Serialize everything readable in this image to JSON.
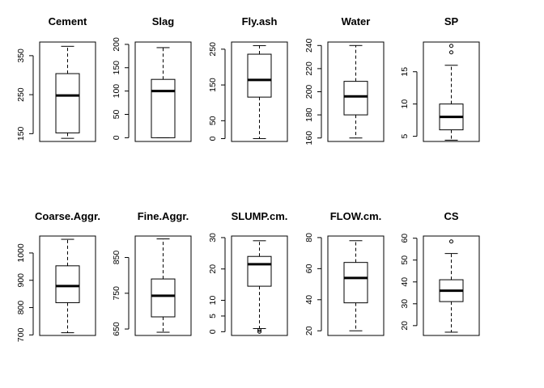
{
  "chart_data": [
    {
      "type": "box",
      "title": "Cement",
      "yticks": [
        150,
        250,
        350
      ],
      "ylim": [
        130,
        385
      ],
      "box": {
        "whisker_low": 138,
        "q1": 152,
        "median": 248,
        "q3": 304,
        "whisker_high": 374
      },
      "outliers": []
    },
    {
      "type": "box",
      "title": "Slag",
      "yticks": [
        0,
        50,
        100,
        150,
        200
      ],
      "ylim": [
        -8,
        205
      ],
      "box": {
        "whisker_low": 0,
        "q1": 0,
        "median": 100,
        "q3": 125,
        "whisker_high": 193
      },
      "outliers": []
    },
    {
      "type": "box",
      "title": "Fly.ash",
      "yticks": [
        0,
        50,
        150,
        250
      ],
      "ylim": [
        -8,
        270
      ],
      "box": {
        "whisker_low": 0,
        "q1": 116,
        "median": 164,
        "q3": 236,
        "whisker_high": 260
      },
      "outliers": []
    },
    {
      "type": "box",
      "title": "Water",
      "yticks": [
        160,
        180,
        200,
        220,
        240
      ],
      "ylim": [
        157,
        243
      ],
      "box": {
        "whisker_low": 160,
        "q1": 180,
        "median": 196,
        "q3": 209,
        "whisker_high": 240
      },
      "outliers": []
    },
    {
      "type": "box",
      "title": "SP",
      "yticks": [
        5,
        10,
        15
      ],
      "ylim": [
        4.2,
        19.6
      ],
      "box": {
        "whisker_low": 4.4,
        "q1": 6,
        "median": 8,
        "q3": 10,
        "whisker_high": 16
      },
      "outliers": [
        18,
        19
      ]
    },
    {
      "type": "box",
      "title": "Coarse.Aggr.",
      "yticks": [
        700,
        800,
        900,
        1000
      ],
      "ylim": [
        698,
        1062
      ],
      "box": {
        "whisker_low": 708,
        "q1": 818,
        "median": 879,
        "q3": 953,
        "whisker_high": 1050
      },
      "outliers": []
    },
    {
      "type": "box",
      "title": "Fine.Aggr.",
      "yticks": [
        650,
        750,
        850
      ],
      "ylim": [
        632,
        910
      ],
      "box": {
        "whisker_low": 641,
        "q1": 684,
        "median": 743,
        "q3": 790,
        "whisker_high": 902
      },
      "outliers": []
    },
    {
      "type": "box",
      "title": "SLUMP.cm.",
      "yticks": [
        0,
        5,
        10,
        20,
        30
      ],
      "ylim": [
        -1.2,
        30.5
      ],
      "box": {
        "whisker_low": 1,
        "q1": 14.5,
        "median": 21.5,
        "q3": 24,
        "whisker_high": 29
      },
      "outliers": [
        0,
        0.5
      ]
    },
    {
      "type": "box",
      "title": "FLOW.cm.",
      "yticks": [
        20,
        40,
        60,
        80
      ],
      "ylim": [
        17,
        81
      ],
      "box": {
        "whisker_low": 20,
        "q1": 38,
        "median": 54,
        "q3": 64,
        "whisker_high": 78
      },
      "outliers": []
    },
    {
      "type": "box",
      "title": "CS",
      "yticks": [
        20,
        30,
        40,
        50,
        60
      ],
      "ylim": [
        15.5,
        61
      ],
      "box": {
        "whisker_low": 17,
        "q1": 31,
        "median": 36,
        "q3": 41,
        "whisker_high": 53
      },
      "outliers": [
        58.5
      ]
    }
  ]
}
